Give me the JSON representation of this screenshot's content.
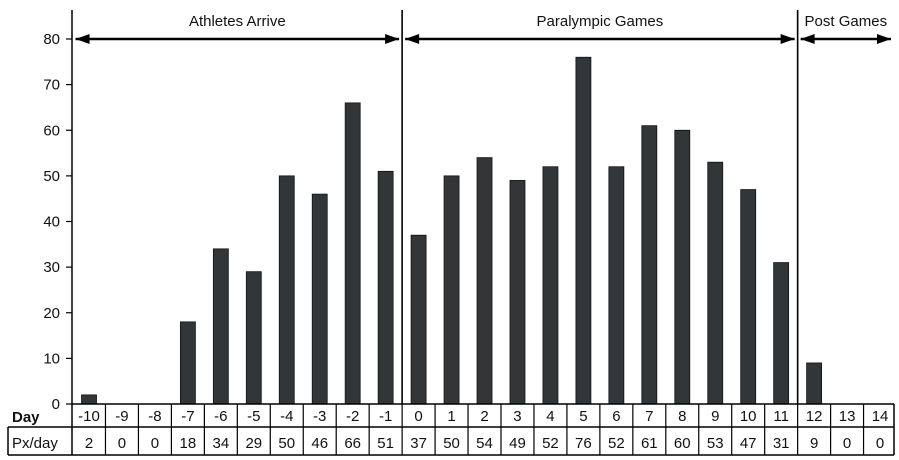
{
  "chart_data": {
    "type": "bar",
    "categories": [
      "-10",
      "-9",
      "-8",
      "-7",
      "-6",
      "-5",
      "-4",
      "-3",
      "-2",
      "-1",
      "0",
      "1",
      "2",
      "3",
      "4",
      "5",
      "6",
      "7",
      "8",
      "9",
      "10",
      "11",
      "12",
      "13",
      "14"
    ],
    "values": [
      2,
      0,
      0,
      18,
      34,
      29,
      50,
      46,
      66,
      51,
      37,
      50,
      54,
      49,
      52,
      76,
      52,
      61,
      60,
      53,
      47,
      31,
      9,
      0,
      0
    ],
    "yticks": [
      0,
      10,
      20,
      30,
      40,
      50,
      60,
      70,
      80
    ],
    "ylim": [
      0,
      80
    ],
    "phases": [
      {
        "label": "Athletes Arrive",
        "from": "-10",
        "to": "-1"
      },
      {
        "label": "Paralympic Games",
        "from": "0",
        "to": "11"
      },
      {
        "label": "Post Games",
        "from": "12",
        "to": "14"
      }
    ],
    "table": {
      "row1_label": "Day",
      "row2_label": "Px/day"
    },
    "colors": {
      "bar": "#333638",
      "line": "#000000"
    }
  }
}
